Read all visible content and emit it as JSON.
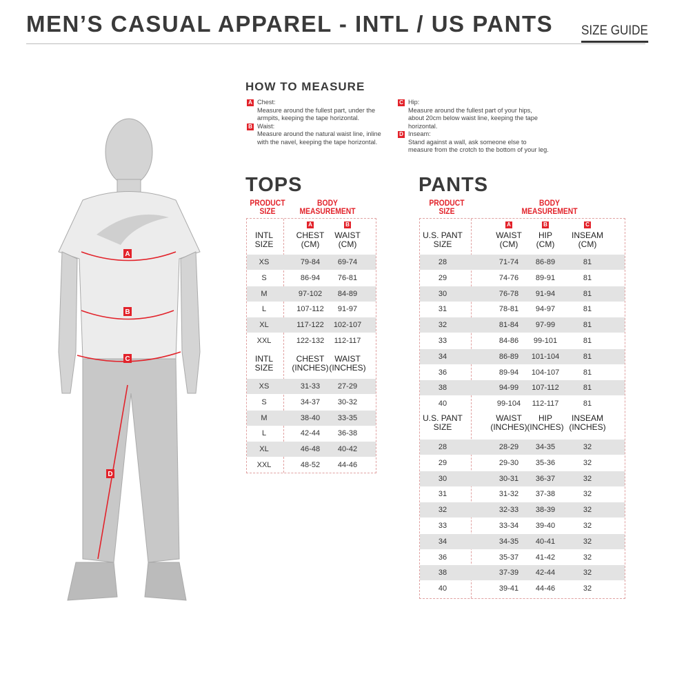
{
  "header": {
    "title": "MEN’S CASUAL APPAREL - INTL / US PANTS",
    "guide": "SIZE GUIDE"
  },
  "colors": {
    "accent": "#e2222a",
    "shade": "#e3e3e3"
  },
  "how_to_measure": {
    "title": "HOW TO MEASURE",
    "items": [
      {
        "letter": "A",
        "label": "Chest:",
        "text": "Measure around the fullest part, under the armpits, keeping the tape horizontal."
      },
      {
        "letter": "B",
        "label": "Waist:",
        "text": "Measure around the natural waist line, inline with the navel, keeping the tape horizontal."
      },
      {
        "letter": "C",
        "label": "Hip:",
        "text": "Measure around the fullest part of your hips, about 20cm below waist line, keeping the tape horizontal."
      },
      {
        "letter": "D",
        "label": "Inseam:",
        "text": "Stand against a wall, ask someone else to measure from the crotch to the bottom of your leg."
      }
    ]
  },
  "figure": {
    "labels": [
      "A",
      "B",
      "C",
      "D"
    ]
  },
  "tops": {
    "title": "TOPS",
    "product_size": "PRODUCT SIZE",
    "body_measurement": "BODY MEASUREMENT",
    "badges": [
      "A",
      "B"
    ],
    "cm_headers": [
      "INTL SIZE",
      "CHEST (CM)",
      "WAIST (CM)"
    ],
    "cm_rows": [
      [
        "XS",
        "79-84",
        "69-74"
      ],
      [
        "S",
        "86-94",
        "76-81"
      ],
      [
        "M",
        "97-102",
        "84-89"
      ],
      [
        "L",
        "107-112",
        "91-97"
      ],
      [
        "XL",
        "117-122",
        "102-107"
      ],
      [
        "XXL",
        "122-132",
        "112-117"
      ]
    ],
    "in_headers": [
      "INTL SIZE",
      "CHEST (INCHES)",
      "WAIST (INCHES)"
    ],
    "in_rows": [
      [
        "XS",
        "31-33",
        "27-29"
      ],
      [
        "S",
        "34-37",
        "30-32"
      ],
      [
        "M",
        "38-40",
        "33-35"
      ],
      [
        "L",
        "42-44",
        "36-38"
      ],
      [
        "XL",
        "46-48",
        "40-42"
      ],
      [
        "XXL",
        "48-52",
        "44-46"
      ]
    ]
  },
  "pants": {
    "title": "PANTS",
    "product_size": "PRODUCT SIZE",
    "body_measurement": "BODY MEASUREMENT",
    "badges": [
      "A",
      "B",
      "C"
    ],
    "cm_headers": [
      "U.S. PANT SIZE",
      "WAIST (CM)",
      "HIP (CM)",
      "INSEAM (CM)"
    ],
    "cm_rows": [
      [
        "28",
        "71-74",
        "86-89",
        "81"
      ],
      [
        "29",
        "74-76",
        "89-91",
        "81"
      ],
      [
        "30",
        "76-78",
        "91-94",
        "81"
      ],
      [
        "31",
        "78-81",
        "94-97",
        "81"
      ],
      [
        "32",
        "81-84",
        "97-99",
        "81"
      ],
      [
        "33",
        "84-86",
        "99-101",
        "81"
      ],
      [
        "34",
        "86-89",
        "101-104",
        "81"
      ],
      [
        "36",
        "89-94",
        "104-107",
        "81"
      ],
      [
        "38",
        "94-99",
        "107-112",
        "81"
      ],
      [
        "40",
        "99-104",
        "112-117",
        "81"
      ]
    ],
    "in_headers": [
      "U.S. PANT SIZE",
      "WAIST (INCHES)",
      "HIP (INCHES)",
      "INSEAM (INCHES)"
    ],
    "in_rows": [
      [
        "28",
        "28-29",
        "34-35",
        "32"
      ],
      [
        "29",
        "29-30",
        "35-36",
        "32"
      ],
      [
        "30",
        "30-31",
        "36-37",
        "32"
      ],
      [
        "31",
        "31-32",
        "37-38",
        "32"
      ],
      [
        "32",
        "32-33",
        "38-39",
        "32"
      ],
      [
        "33",
        "33-34",
        "39-40",
        "32"
      ],
      [
        "34",
        "34-35",
        "40-41",
        "32"
      ],
      [
        "36",
        "35-37",
        "41-42",
        "32"
      ],
      [
        "38",
        "37-39",
        "42-44",
        "32"
      ],
      [
        "40",
        "39-41",
        "44-46",
        "32"
      ]
    ]
  }
}
